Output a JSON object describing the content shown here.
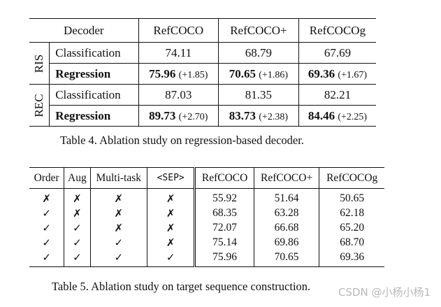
{
  "table4": {
    "header": {
      "decoder": "Decoder",
      "cols": [
        "RefCOCO",
        "RefCOCO+",
        "RefCOCOg"
      ]
    },
    "groups": [
      {
        "name": "RIS",
        "rows": [
          {
            "label": "Classification",
            "bold": false,
            "cells": [
              {
                "value": "74.11",
                "delta": ""
              },
              {
                "value": "68.79",
                "delta": ""
              },
              {
                "value": "67.69",
                "delta": ""
              }
            ]
          },
          {
            "label": "Regression",
            "bold": true,
            "cells": [
              {
                "value": "75.96",
                "delta": "(+1.85)"
              },
              {
                "value": "70.65",
                "delta": "(+1.86)"
              },
              {
                "value": "69.36",
                "delta": "(+1.67)"
              }
            ]
          }
        ]
      },
      {
        "name": "REC",
        "rows": [
          {
            "label": "Classification",
            "bold": false,
            "cells": [
              {
                "value": "87.03",
                "delta": ""
              },
              {
                "value": "81.35",
                "delta": ""
              },
              {
                "value": "82.21",
                "delta": ""
              }
            ]
          },
          {
            "label": "Regression",
            "bold": true,
            "cells": [
              {
                "value": "89.73",
                "delta": "(+2.70)"
              },
              {
                "value": "83.73",
                "delta": "(+2.38)"
              },
              {
                "value": "84.46",
                "delta": "(+2.25)"
              }
            ]
          }
        ]
      }
    ],
    "caption": "Table 4. Ablation study on regression-based decoder."
  },
  "table5": {
    "header": [
      "Order",
      "Aug",
      "Multi-task",
      "<SEP>",
      "RefCOCO",
      "RefCOCO+",
      "RefCOCOg"
    ],
    "rows": [
      [
        "✗",
        "✗",
        "✗",
        "✗",
        "55.92",
        "51.64",
        "50.65"
      ],
      [
        "✓",
        "✗",
        "✗",
        "✗",
        "68.35",
        "63.28",
        "62.18"
      ],
      [
        "✓",
        "✓",
        "✗",
        "✗",
        "72.07",
        "66.68",
        "65.20"
      ],
      [
        "✓",
        "✓",
        "✓",
        "✗",
        "75.14",
        "69.86",
        "68.70"
      ],
      [
        "✓",
        "✓",
        "✓",
        "✓",
        "75.96",
        "70.65",
        "69.36"
      ]
    ],
    "caption": "Table 5. Ablation study on target sequence construction."
  },
  "watermark": "CSDN @小杨小杨1"
}
